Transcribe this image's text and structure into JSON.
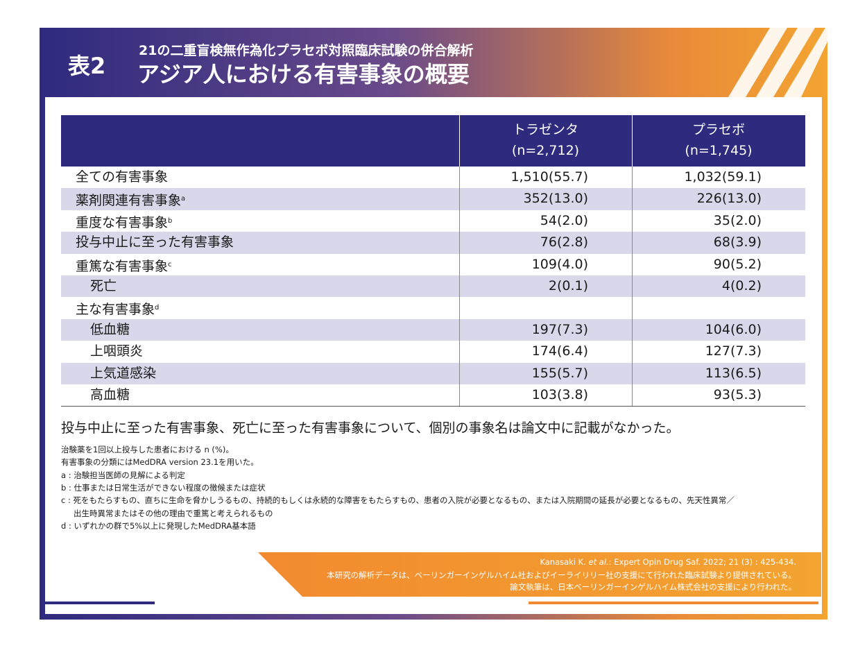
{
  "header": {
    "label": "表2",
    "subtitle": "21の二重盲検無作為化プラセボ対照臨床試験の併合解析",
    "title": "アジア人における有害事象の概要"
  },
  "table": {
    "columns": [
      {
        "name": "トラゼンタ",
        "n": "(n=2,712)"
      },
      {
        "name": "プラセボ",
        "n": "(n=1,745)"
      }
    ],
    "rows": [
      {
        "label": "全ての有害事象",
        "values": [
          "1,510(55.7)",
          "1,032(59.1)"
        ]
      },
      {
        "label": "薬剤関連有害事象",
        "sup": "a",
        "values": [
          "352(13.0)",
          "226(13.0)"
        ]
      },
      {
        "label": "重度な有害事象",
        "sup": "b",
        "values": [
          "54(2.0)",
          "35(2.0)"
        ]
      },
      {
        "label": "投与中止に至った有害事象",
        "values": [
          "76(2.8)",
          "68(3.9)"
        ]
      },
      {
        "label": "重篤な有害事象",
        "sup": "c",
        "values": [
          "109(4.0)",
          "90(5.2)"
        ],
        "sub": [
          {
            "label": "死亡",
            "values": [
              "2(0.1)",
              "4(0.2)"
            ]
          }
        ]
      },
      {
        "label": "主な有害事象",
        "sup": "d",
        "sub": [
          {
            "label": "低血糖",
            "values": [
              "197(7.3)",
              "104(6.0)"
            ]
          },
          {
            "label": "上咽頭炎",
            "values": [
              "174(6.4)",
              "127(7.3)"
            ]
          },
          {
            "label": "上気道感染",
            "values": [
              "155(5.7)",
              "113(6.5)"
            ]
          },
          {
            "label": "高血糖",
            "values": [
              "103(3.8)",
              "93(5.3)"
            ]
          }
        ]
      }
    ]
  },
  "note": "投与中止に至った有害事象、死亡に至った有害事象について、個別の事象名は論文中に記載がなかった。",
  "footnotes": [
    [
      "治験薬を1回以上投与した患者における n (%)。"
    ],
    [
      "有害事象の分類にはMedDRA version 23.1を用いた。"
    ],
    [
      "a : 治験担当医師の見解による判定"
    ],
    [
      "b : 仕事または日常生活ができない程度の徴候または症状"
    ],
    [
      "c : 死をもたらすもの、直ちに生命を脅かしうるもの、持続的もしくは永続的な障害をもたらすもの、患者の入院が必要となるもの、または入院期間の延長が必要となるもの、先天性異常／",
      "出生時異常またはその他の理由で重篤と考えられるもの"
    ],
    [
      "d : いずれかの群で5%以上に発現したMedDRA基本語"
    ]
  ],
  "citation": {
    "author": "Kanasaki K.",
    "etal": "et al.",
    "source": ": Expert Opin Drug Saf. 2022; 21 (3) : 425-434.",
    "lines": [
      "本研究の解析データは、ベーリンガーインゲルハイム社およびイーライリリー社の支援にて行われた臨床試験より提供されている。",
      "論文執筆は、日本ベーリンガーインゲルハイム株式会社の支援により行われた。"
    ]
  }
}
